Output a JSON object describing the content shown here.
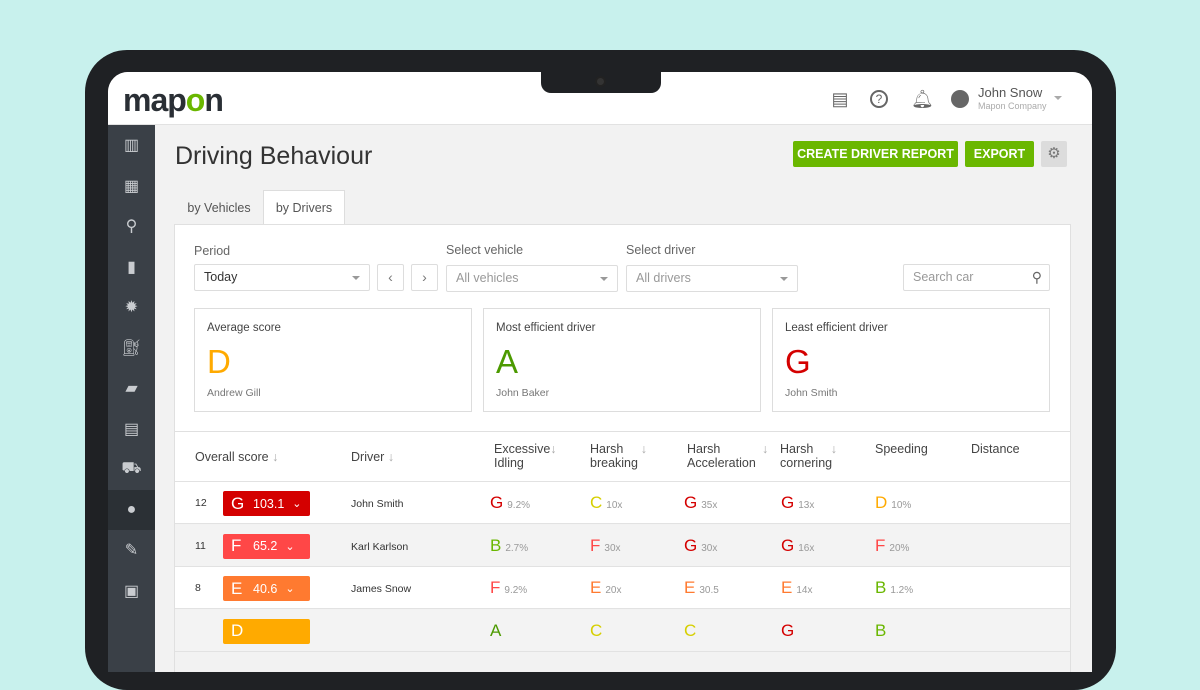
{
  "brand": {
    "logo": "mapon"
  },
  "header": {
    "user_name": "John Snow",
    "company": "Mapon Company",
    "icons": [
      "report-icon",
      "help-icon",
      "bell-icon",
      "user-icon"
    ]
  },
  "sidebar": {
    "items": [
      "map-icon",
      "dashboard-icon",
      "routes-icon",
      "document-icon",
      "alert-icon",
      "fuel-icon",
      "chat-icon",
      "clipboard-icon",
      "car-icon",
      "driver-icon",
      "tasks-icon",
      "calendar-icon"
    ],
    "active": 9
  },
  "page": {
    "title": "Driving Behaviour",
    "create_report": "CREATE DRIVER REPORT",
    "export": "EXPORT"
  },
  "tabs": [
    {
      "label": "by Vehicles"
    },
    {
      "label": "by Drivers",
      "active": true
    }
  ],
  "filters": {
    "period_label": "Period",
    "period_value": "Today",
    "vehicle_label": "Select vehicle",
    "vehicle_value": "All vehicles",
    "driver_label": "Select driver",
    "driver_value": "All drivers",
    "search_placeholder": "Search car"
  },
  "cards": [
    {
      "title": "Average score",
      "grade": "D",
      "name": "Andrew Gill",
      "color": "#ffaa00"
    },
    {
      "title": "Most efficient driver",
      "grade": "A",
      "name": "John Baker",
      "color": "#4c9a00"
    },
    {
      "title": "Least efficient driver",
      "grade": "G",
      "name": "John Smith",
      "color": "#d40000"
    }
  ],
  "table": {
    "headers": {
      "overall": "Overall score",
      "driver": "Driver",
      "idling1": "Excessive",
      "idling2": "Idling",
      "braking1": "Harsh",
      "braking2": "breaking",
      "accel1": "Harsh",
      "accel2": "Acceleration",
      "corner1": "Harsh",
      "corner2": "cornering",
      "speeding": "Speeding",
      "distance": "Distance"
    },
    "rows": [
      {
        "rank": "12",
        "grade": "G",
        "score": "103.1",
        "driver": "John Smith",
        "cells": [
          [
            "G",
            "9.2%"
          ],
          [
            "C",
            "10x"
          ],
          [
            "G",
            "35x"
          ],
          [
            "G",
            "13x"
          ],
          [
            "D",
            "10%"
          ]
        ]
      },
      {
        "rank": "11",
        "grade": "F",
        "score": "65.2",
        "driver": "Karl Karlson",
        "cells": [
          [
            "B",
            "2.7%"
          ],
          [
            "F",
            "30x"
          ],
          [
            "G",
            "30x"
          ],
          [
            "G",
            "16x"
          ],
          [
            "F",
            "20%"
          ]
        ]
      },
      {
        "rank": "8",
        "grade": "E",
        "score": "40.6",
        "driver": "James Snow",
        "cells": [
          [
            "F",
            "9.2%"
          ],
          [
            "E",
            "20x"
          ],
          [
            "E",
            "30.5"
          ],
          [
            "E",
            "14x"
          ],
          [
            "B",
            "1.2%"
          ]
        ]
      },
      {
        "rank": "",
        "grade": "D",
        "score": "",
        "driver": "",
        "cells": [
          [
            "A",
            ""
          ],
          [
            "C",
            ""
          ],
          [
            "C",
            ""
          ],
          [
            "G",
            ""
          ],
          [
            "B",
            ""
          ]
        ]
      }
    ]
  },
  "grade_colors": {
    "A": "#4c9a00",
    "B": "#6ab700",
    "C": "#d6cf00",
    "D": "#ffaa00",
    "E": "#ff7a30",
    "F": "#ff4747",
    "G": "#d40000"
  }
}
